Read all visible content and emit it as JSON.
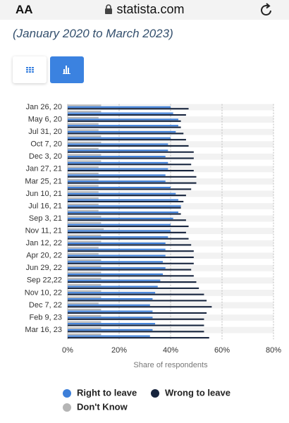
{
  "browser": {
    "text_size": "AA",
    "url": "statista.com"
  },
  "subtitle": "(January 2020 to March 2023)",
  "chart_data": {
    "type": "bar",
    "orientation": "horizontal",
    "x_label": "Share of respondents",
    "categories": [
      "Jan 26, 20",
      null,
      "May 6, 20",
      null,
      "Jul 31, 20",
      null,
      "Oct 7, 20",
      null,
      "Dec 3, 20",
      null,
      "Jan 27, 21",
      null,
      "Mar 25, 21",
      null,
      "Jun 10, 21",
      null,
      "Jul 16, 21",
      null,
      "Sep 3, 21",
      null,
      "Nov 11, 21",
      null,
      "Jan 12, 22",
      null,
      "Apr 20, 22",
      null,
      "Jun 29, 22",
      null,
      "Sep 22,22",
      null,
      "Nov 10, 22",
      null,
      "Dec 7, 22",
      null,
      "Feb 9, 23",
      null,
      "Mar 16, 23",
      null
    ],
    "series": [
      {
        "name": "Right to leave",
        "color": "#3d7fd9",
        "values": [
          40,
          41,
          43,
          43,
          42,
          40,
          39,
          39,
          38,
          39,
          39,
          38,
          38,
          40,
          42,
          43,
          44,
          43,
          41,
          40,
          40,
          39,
          38,
          38,
          38,
          37,
          38,
          37,
          36,
          35,
          34,
          33,
          32,
          33,
          33,
          34,
          33,
          32
        ]
      },
      {
        "name": "Wrong to leave",
        "color": "#16243d",
        "values": [
          47,
          46,
          44,
          44,
          45,
          46,
          47,
          49,
          49,
          48,
          49,
          50,
          50,
          48,
          46,
          45,
          44,
          44,
          46,
          47,
          46,
          47,
          48,
          49,
          49,
          49,
          48,
          49,
          50,
          51,
          53,
          54,
          56,
          54,
          53,
          53,
          53,
          55
        ]
      },
      {
        "name": "Don't Know",
        "color": "#b5b5b5",
        "values": [
          13,
          13,
          12,
          12,
          12,
          13,
          13,
          12,
          13,
          13,
          12,
          12,
          12,
          12,
          12,
          12,
          12,
          12,
          13,
          13,
          14,
          13,
          13,
          12,
          12,
          13,
          13,
          13,
          13,
          13,
          13,
          13,
          12,
          13,
          13,
          13,
          13,
          13
        ]
      }
    ],
    "xlim": [
      0,
      80
    ],
    "xticks": [
      {
        "value": 0,
        "label": "0%"
      },
      {
        "value": 20,
        "label": "20%"
      },
      {
        "value": 40,
        "label": "40%"
      },
      {
        "value": 60,
        "label": "60%"
      },
      {
        "value": 80,
        "label": "80%"
      }
    ],
    "grid": true
  }
}
